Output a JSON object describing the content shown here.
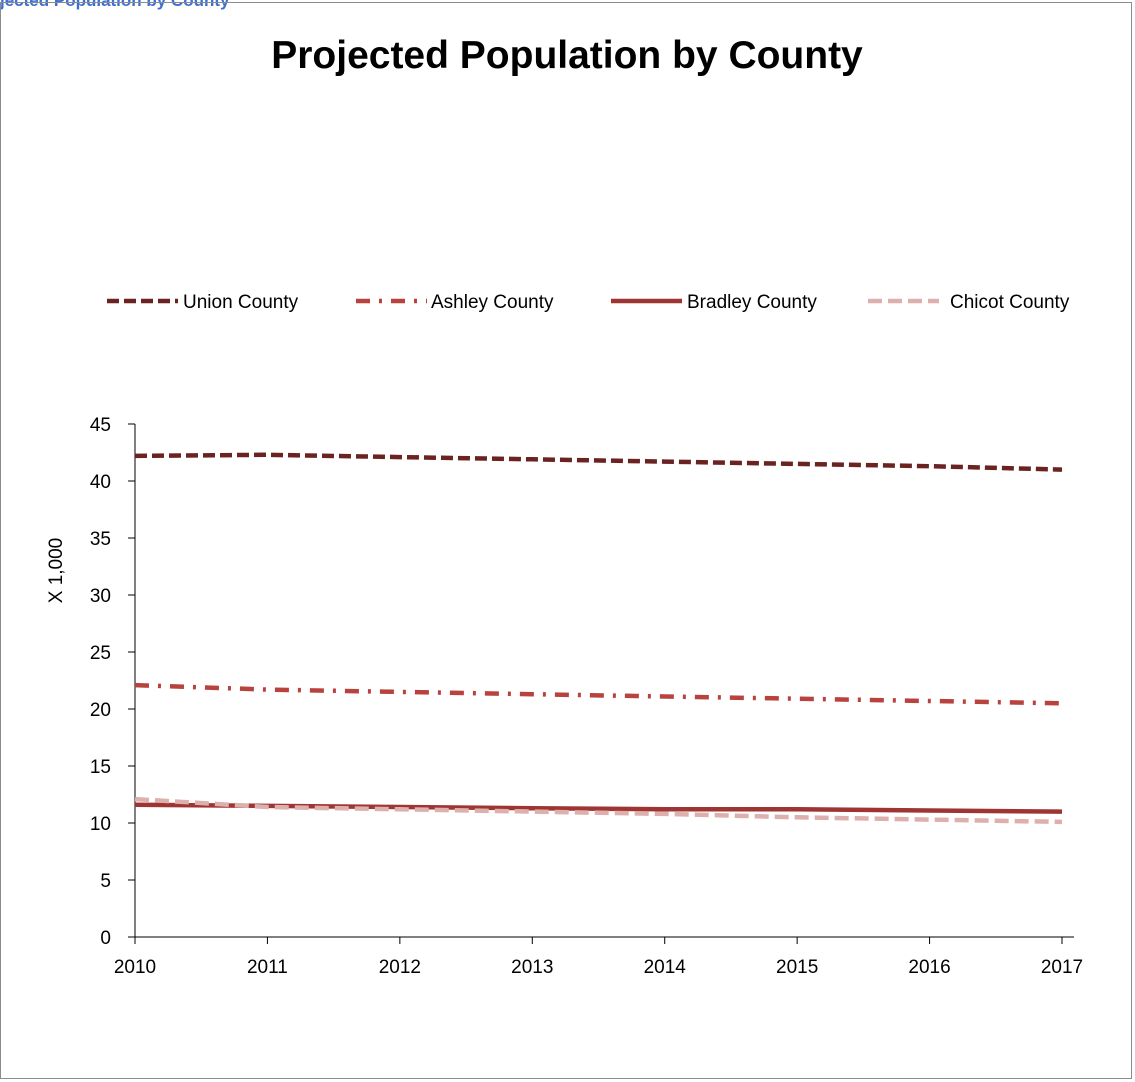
{
  "header": {
    "caption": "jected Population by County"
  },
  "chart_data": {
    "type": "line",
    "title": "Projected Population by County",
    "xlabel": "",
    "ylabel": "X 1,000",
    "x": [
      2010,
      2011,
      2012,
      2013,
      2014,
      2015,
      2016,
      2017
    ],
    "ylim": [
      0,
      45
    ],
    "yticks": [
      0,
      5,
      10,
      15,
      20,
      25,
      30,
      35,
      40,
      45
    ],
    "grid": false,
    "legend_position": "top",
    "series": [
      {
        "name": "Union County",
        "color": "#6b2322",
        "style": "dashed",
        "values": [
          42.2,
          42.3,
          42.1,
          41.9,
          41.7,
          41.5,
          41.3,
          41.0
        ]
      },
      {
        "name": "Ashley County",
        "color": "#b8423d",
        "style": "dash-dot",
        "values": [
          22.1,
          21.7,
          21.5,
          21.3,
          21.1,
          20.9,
          20.7,
          20.5
        ]
      },
      {
        "name": "Bradley County",
        "color": "#9e3532",
        "style": "solid",
        "values": [
          11.6,
          11.5,
          11.4,
          11.3,
          11.2,
          11.2,
          11.1,
          11.0
        ]
      },
      {
        "name": "Chicot County",
        "color": "#ddb0ad",
        "style": "dashed-light",
        "values": [
          12.1,
          11.4,
          11.2,
          11.0,
          10.8,
          10.5,
          10.3,
          10.1
        ]
      }
    ]
  }
}
